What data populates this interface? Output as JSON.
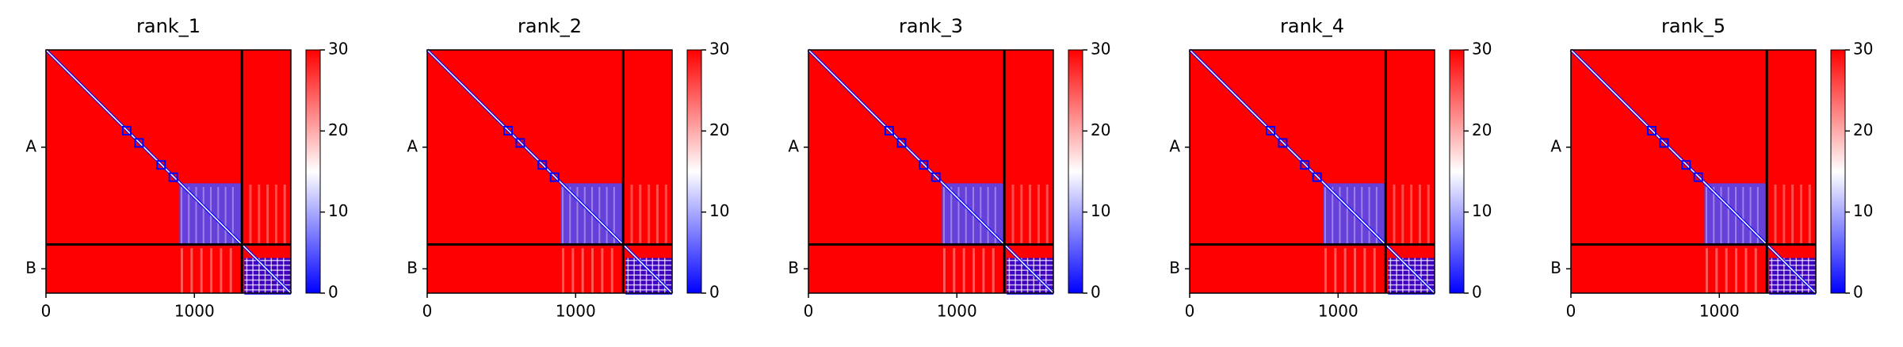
{
  "chart_data": [
    {
      "type": "heatmap",
      "title": "rank_1",
      "xlim": [
        0,
        1650
      ],
      "ylim": [
        1650,
        0
      ],
      "xticks": [
        0,
        1000
      ],
      "yticks": [
        {
          "value": 660,
          "label": "A"
        },
        {
          "value": 1485,
          "label": "B"
        }
      ],
      "chain_breaks": [
        1320
      ],
      "colorbar": {
        "lim": [
          0,
          30
        ],
        "ticks": [
          0,
          10,
          20,
          30
        ],
        "colors": [
          "#0000ff",
          "#ffffff",
          "#ff0000"
        ]
      }
    },
    {
      "type": "heatmap",
      "title": "rank_2",
      "xlim": [
        0,
        1650
      ],
      "ylim": [
        1650,
        0
      ],
      "xticks": [
        0,
        1000
      ],
      "yticks": [
        {
          "value": 660,
          "label": "A"
        },
        {
          "value": 1485,
          "label": "B"
        }
      ],
      "chain_breaks": [
        1320
      ],
      "colorbar": {
        "lim": [
          0,
          30
        ],
        "ticks": [
          0,
          10,
          20,
          30
        ],
        "colors": [
          "#0000ff",
          "#ffffff",
          "#ff0000"
        ]
      }
    },
    {
      "type": "heatmap",
      "title": "rank_3",
      "xlim": [
        0,
        1650
      ],
      "ylim": [
        1650,
        0
      ],
      "xticks": [
        0,
        1000
      ],
      "yticks": [
        {
          "value": 660,
          "label": "A"
        },
        {
          "value": 1485,
          "label": "B"
        }
      ],
      "chain_breaks": [
        1320
      ],
      "colorbar": {
        "lim": [
          0,
          30
        ],
        "ticks": [
          0,
          10,
          20,
          30
        ],
        "colors": [
          "#0000ff",
          "#ffffff",
          "#ff0000"
        ]
      }
    },
    {
      "type": "heatmap",
      "title": "rank_4",
      "xlim": [
        0,
        1650
      ],
      "ylim": [
        1650,
        0
      ],
      "xticks": [
        0,
        1000
      ],
      "yticks": [
        {
          "value": 660,
          "label": "A"
        },
        {
          "value": 1485,
          "label": "B"
        }
      ],
      "chain_breaks": [
        1320
      ],
      "colorbar": {
        "lim": [
          0,
          30
        ],
        "ticks": [
          0,
          10,
          20,
          30
        ],
        "colors": [
          "#0000ff",
          "#ffffff",
          "#ff0000"
        ]
      }
    },
    {
      "type": "heatmap",
      "title": "rank_5",
      "xlim": [
        0,
        1650
      ],
      "ylim": [
        1650,
        0
      ],
      "xticks": [
        0,
        1000
      ],
      "yticks": [
        {
          "value": 660,
          "label": "A"
        },
        {
          "value": 1485,
          "label": "B"
        }
      ],
      "chain_breaks": [
        1320
      ],
      "colorbar": {
        "lim": [
          0,
          30
        ],
        "ticks": [
          0,
          10,
          20,
          30
        ],
        "colors": [
          "#0000ff",
          "#ffffff",
          "#ff0000"
        ]
      }
    }
  ]
}
